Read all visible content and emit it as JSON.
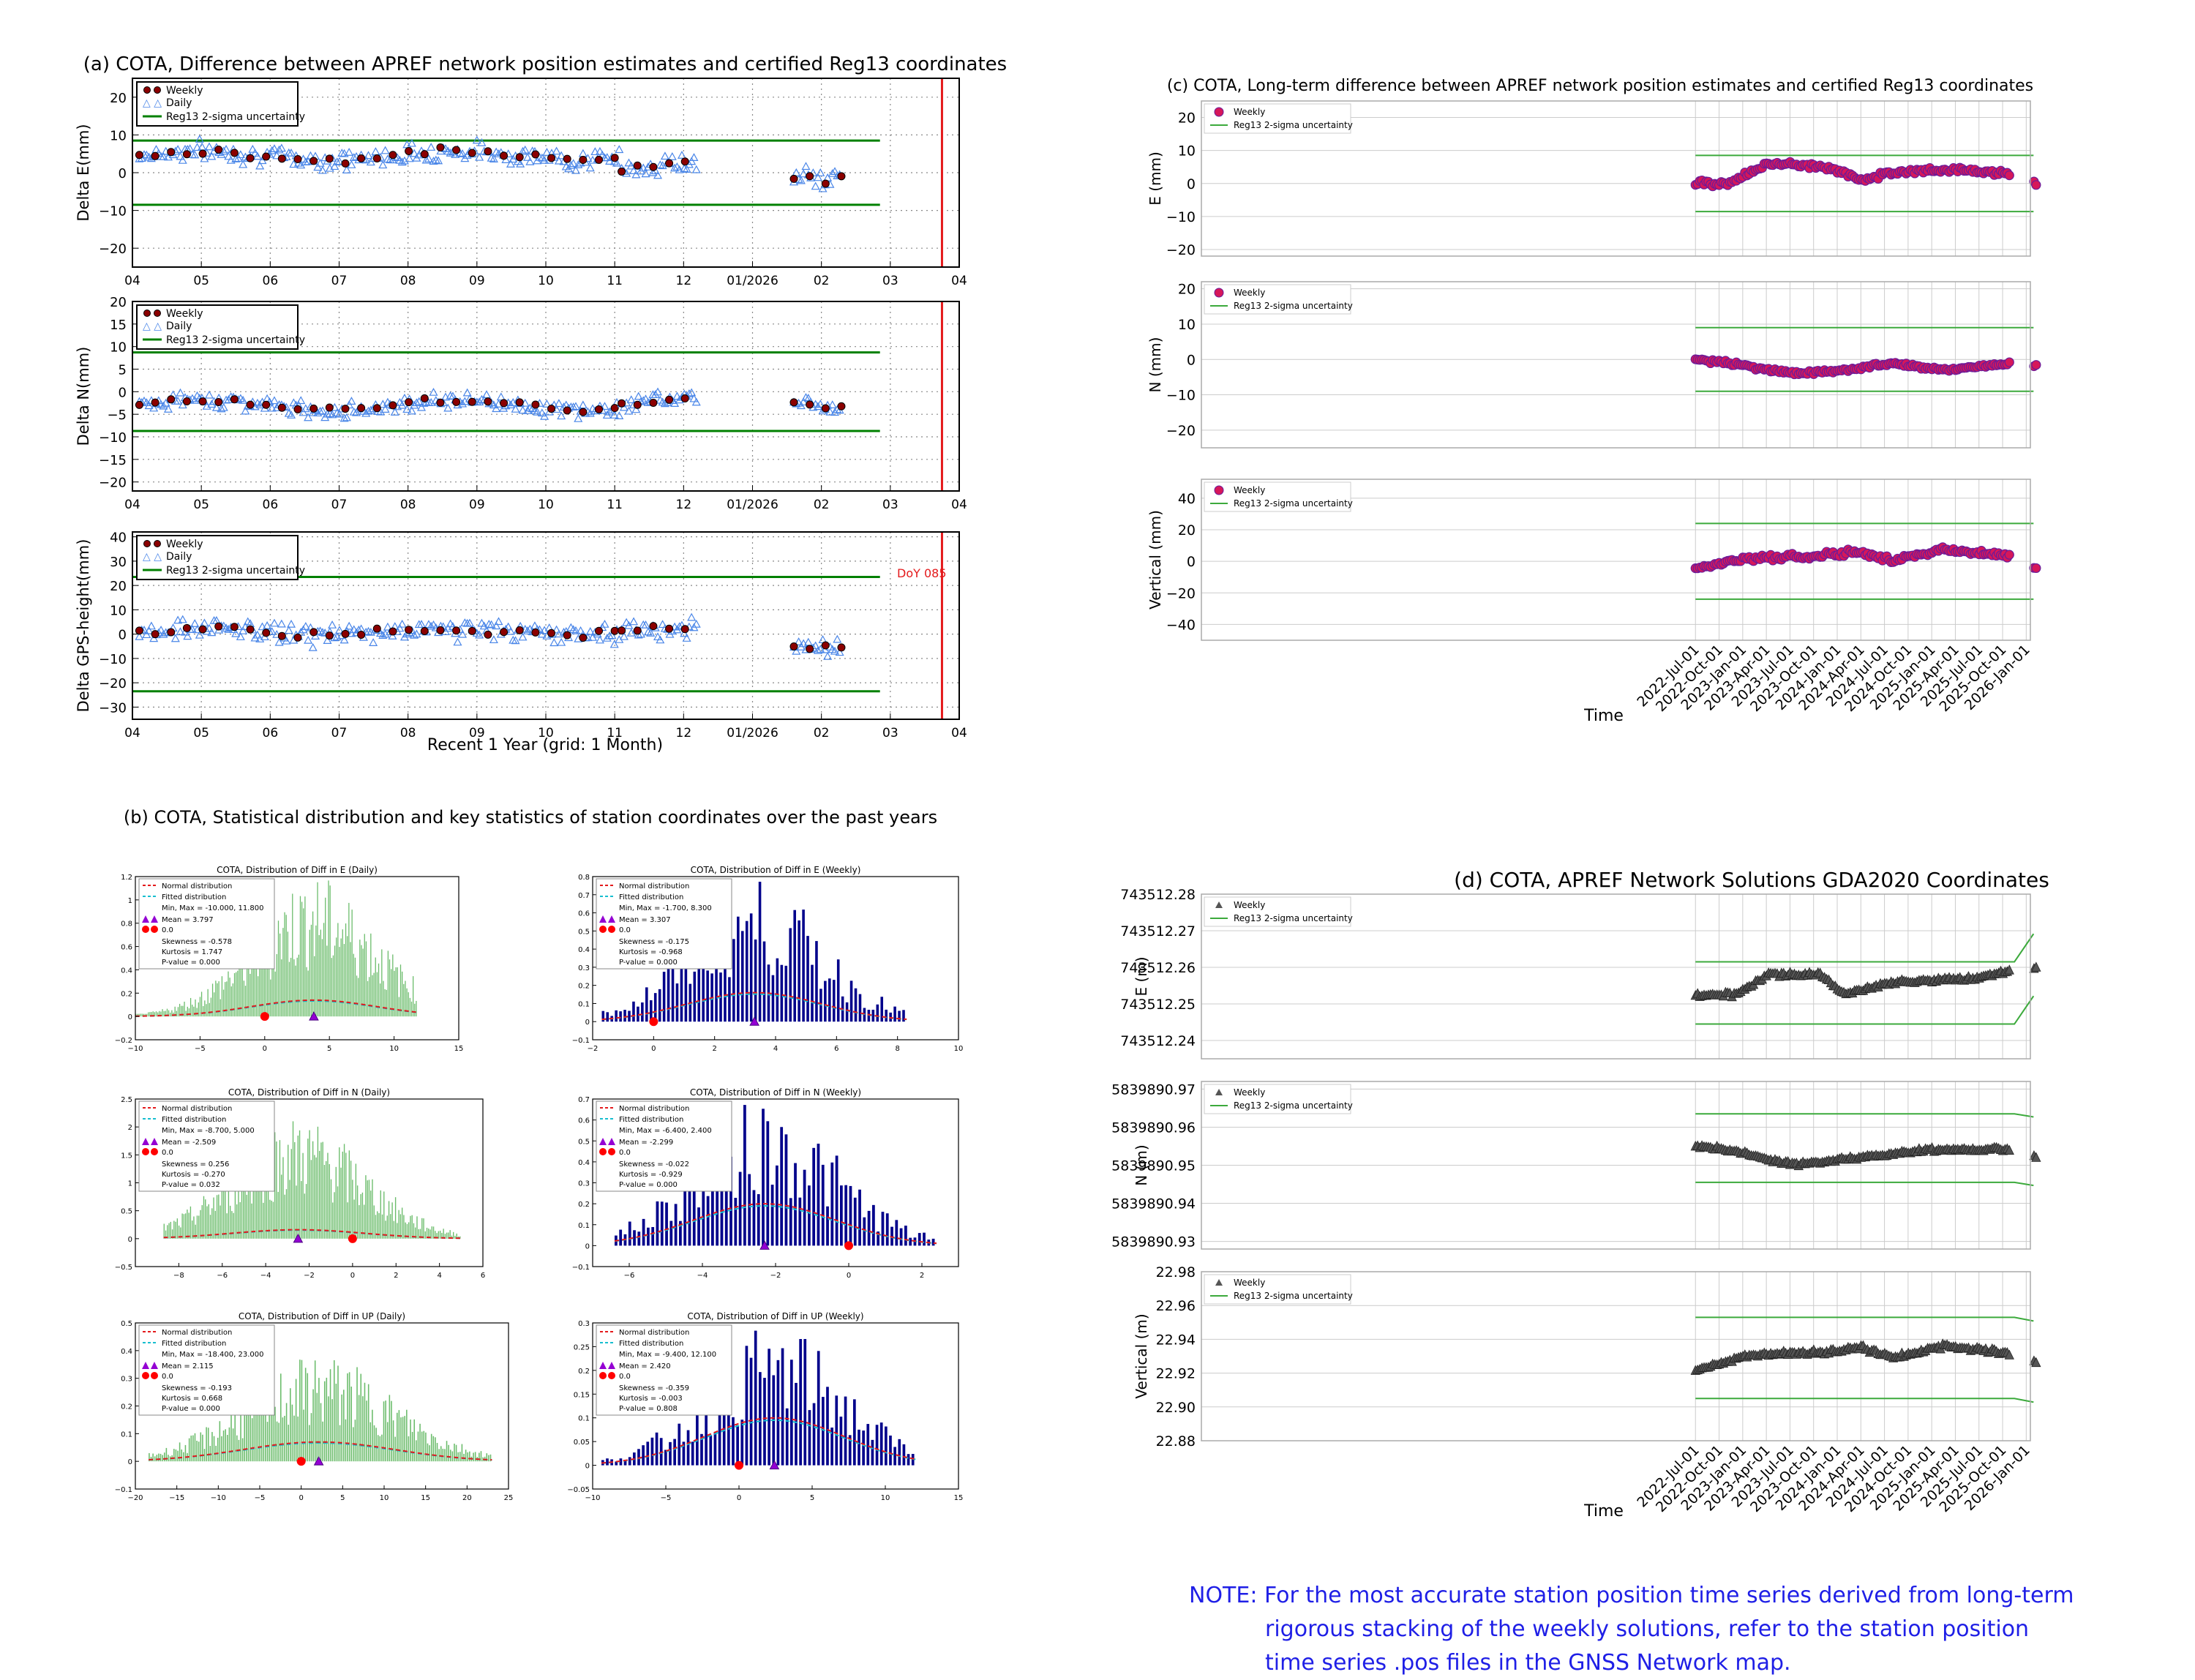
{
  "colors": {
    "weekly_fill": "#8b0000",
    "daily_stroke": "#4a86e8",
    "sigma": "#008000",
    "redline": "#e41a1c",
    "grid": "#888888",
    "lt_fill": "#d6175a",
    "lt_edge": "#6a1b9a",
    "lt_sigma": "#3caa3c",
    "hist_green": "#3aa53a",
    "hist_blue": "#00008b",
    "normal": "#e41a1c",
    "fitted": "#17becf",
    "mean": "#9400d3",
    "zero": "#ff0000",
    "gda_marker": "#555555",
    "note": "#1f1fe6"
  },
  "panel_a": {
    "title": "(a) COTA, Difference between APREF network position estimates and certified Reg13 coordinates",
    "xlabel": "Recent 1 Year (grid: 1 Month)",
    "xticks": [
      "04",
      "05",
      "06",
      "07",
      "08",
      "09",
      "10",
      "11",
      "12",
      "01/2026",
      "02",
      "03",
      "04"
    ],
    "legend": [
      "Weekly",
      "Daily",
      "Reg13 2-sigma uncertainty"
    ],
    "doy_label": "DoY 085",
    "subplots": [
      {
        "ylabel": "Delta E(mm)",
        "ylim": [
          -25,
          25
        ],
        "yticks": [
          -20,
          -10,
          0,
          10,
          20
        ],
        "sigma": 8.5,
        "sigma_low": -8.5,
        "weekly_mean": 5,
        "daily_spread": 3,
        "segments": [
          [
            0,
            7
          ],
          [
            7,
            8.1
          ],
          [
            9.5,
            10.2
          ]
        ],
        "offset": [
          4.5,
          1.5,
          -0.5
        ]
      },
      {
        "ylabel": "Delta N(mm)",
        "ylim": [
          -22,
          20
        ],
        "yticks": [
          -20,
          -15,
          -10,
          -5,
          0,
          5,
          10,
          15,
          20
        ],
        "sigma": 8.7,
        "sigma_low": -8.7,
        "weekly_mean": -2,
        "daily_spread": 2,
        "segments": [
          [
            0,
            7
          ],
          [
            7,
            8.1
          ],
          [
            9.5,
            10.2
          ]
        ],
        "offset": [
          -3,
          -2,
          -2
        ]
      },
      {
        "ylabel": "Delta GPS-height(mm)",
        "ylim": [
          -35,
          42
        ],
        "yticks": [
          -30,
          -20,
          -10,
          0,
          10,
          20,
          30,
          40
        ],
        "sigma": 23.5,
        "sigma_low": -23.5,
        "weekly_mean": 2,
        "daily_spread": 5,
        "segments": [
          [
            0,
            7
          ],
          [
            7,
            8.1
          ],
          [
            9.5,
            10.2
          ]
        ],
        "offset": [
          1,
          2,
          -5
        ]
      }
    ]
  },
  "panel_b": {
    "title": "(b) COTA, Statistical distribution and key statistics of station coordinates over the past years",
    "legend_labels": [
      "Normal distribution",
      "Fitted distribution",
      "Mean",
      "0.0"
    ],
    "hists": [
      {
        "title": "COTA, Distribution of Diff in E (Daily)",
        "color": "green",
        "xlim": [
          -10,
          15
        ],
        "xticks": [
          -10,
          -5,
          0,
          5,
          10,
          15
        ],
        "ylim": [
          -0.2,
          1.2
        ],
        "yticks": [
          -0.2,
          0.0,
          0.2,
          0.4,
          0.6,
          0.8,
          1.0,
          1.2
        ],
        "mean": 3.797,
        "min": -10.0,
        "max": 11.8,
        "peak": 1.1,
        "normal_peak": 0.14,
        "stats": [
          "Min, Max  = -10.000, 11.800",
          "Mean       = 3.797",
          "Skewness = -0.578",
          "Kurtosis    = 1.747",
          "P-value  = 0.000"
        ]
      },
      {
        "title": "COTA, Distribution of Diff in E (Weekly)",
        "color": "blue",
        "xlim": [
          -2,
          10
        ],
        "xticks": [
          -2,
          0,
          2,
          4,
          6,
          8,
          10
        ],
        "ylim": [
          -0.1,
          0.8
        ],
        "yticks": [
          -0.1,
          0.0,
          0.1,
          0.2,
          0.3,
          0.4,
          0.5,
          0.6,
          0.7,
          0.8
        ],
        "mean": 3.307,
        "min": -1.7,
        "max": 8.3,
        "peak": 0.72,
        "normal_peak": 0.16,
        "stats": [
          "Min, Max  = -1.700,  8.300",
          "Mean       = 3.307",
          "Skewness = -0.175",
          "Kurtosis    = -0.968",
          "P-value  = 0.000"
        ]
      },
      {
        "title": "COTA, Distribution of Diff in N (Daily)",
        "color": "green",
        "xlim": [
          -10,
          6
        ],
        "xticks": [
          -8,
          -6,
          -4,
          -2,
          0,
          2,
          4,
          6
        ],
        "ylim": [
          -0.5,
          2.5
        ],
        "yticks": [
          -0.5,
          0.0,
          0.5,
          1.0,
          1.5,
          2.0,
          2.5
        ],
        "mean": -2.509,
        "min": -8.7,
        "max": 5.0,
        "peak": 2.0,
        "normal_peak": 0.16,
        "stats": [
          "Min, Max  = -8.700,  5.000",
          "Mean       = -2.509",
          "Skewness = 0.256",
          "Kurtosis    = -0.270",
          "P-value  = 0.032"
        ]
      },
      {
        "title": "COTA, Distribution of Diff in N (Weekly)",
        "color": "blue",
        "xlim": [
          -7,
          3
        ],
        "xticks": [
          -6,
          -4,
          -2,
          0,
          2
        ],
        "ylim": [
          -0.1,
          0.7
        ],
        "yticks": [
          -0.1,
          0.0,
          0.1,
          0.2,
          0.3,
          0.4,
          0.5,
          0.6,
          0.7
        ],
        "mean": -2.299,
        "min": -6.4,
        "max": 2.4,
        "peak": 0.65,
        "normal_peak": 0.2,
        "stats": [
          "Min, Max  = -6.400,  2.400",
          "Mean       = -2.299",
          "Skewness = -0.022",
          "Kurtosis    = -0.929",
          "P-value  = 0.000"
        ]
      },
      {
        "title": "COTA, Distribution of Diff in UP (Daily)",
        "color": "green",
        "xlim": [
          -20,
          25
        ],
        "xticks": [
          -20,
          -15,
          -10,
          -5,
          0,
          5,
          10,
          15,
          20,
          25
        ],
        "ylim": [
          -0.1,
          0.5
        ],
        "yticks": [
          -0.1,
          0.0,
          0.1,
          0.2,
          0.3,
          0.4,
          0.5
        ],
        "mean": 2.115,
        "min": -18.4,
        "max": 23.0,
        "peak": 0.35,
        "normal_peak": 0.07,
        "stats": [
          "Min, Max  = -18.400, 23.000",
          "Mean       = 2.115",
          "Skewness = -0.193",
          "Kurtosis    = 0.668",
          "P-value  = 0.000"
        ]
      },
      {
        "title": "COTA, Distribution of Diff in UP (Weekly)",
        "color": "blue",
        "xlim": [
          -10,
          15
        ],
        "xticks": [
          -10,
          -5,
          0,
          5,
          10,
          15
        ],
        "ylim": [
          -0.05,
          0.3
        ],
        "yticks": [
          -0.05,
          0.0,
          0.05,
          0.1,
          0.15,
          0.2,
          0.25,
          0.3
        ],
        "mean": 2.42,
        "min": -9.4,
        "max": 12.1,
        "peak": 0.27,
        "normal_peak": 0.1,
        "stats": [
          "Min, Max  = -9.400, 12.100",
          "Mean       = 2.420",
          "Skewness = -0.359",
          "Kurtosis    = -0.003",
          "P-value  = 0.808"
        ]
      }
    ]
  },
  "panel_c": {
    "title": "(c) COTA, Long-term difference between APREF network position estimates and certified Reg13 coordinates",
    "xlabel": "Time",
    "xticks": [
      "2022-Jul-01",
      "2022-Oct-01",
      "2023-Jan-01",
      "2023-Apr-01",
      "2023-Jul-01",
      "2023-Oct-01",
      "2024-Jan-01",
      "2024-Apr-01",
      "2024-Jul-01",
      "2024-Oct-01",
      "2025-Jan-01",
      "2025-Apr-01",
      "2025-Jul-01",
      "2025-Oct-01",
      "2026-Jan-01"
    ],
    "legend": [
      "Weekly",
      "Reg13 2-sigma uncertainty"
    ],
    "subplots": [
      {
        "ylabel": "E (mm)",
        "ylim": [
          -22,
          25
        ],
        "yticks": [
          -20,
          -10,
          0,
          10,
          20
        ],
        "sigma": 8.5,
        "sigma_low": -8.5,
        "trend": [
          [
            0,
            0
          ],
          [
            0.1,
            0
          ],
          [
            0.22,
            6
          ],
          [
            0.4,
            5
          ],
          [
            0.5,
            1
          ],
          [
            0.62,
            4
          ],
          [
            0.8,
            4
          ],
          [
            0.96,
            3
          ],
          [
            1.0,
            -1
          ]
        ],
        "spread": 1.2
      },
      {
        "ylabel": "N (mm)",
        "ylim": [
          -25,
          22
        ],
        "yticks": [
          -20,
          -10,
          0,
          10,
          20
        ],
        "sigma": 9,
        "sigma_low": -9,
        "trend": [
          [
            0,
            0
          ],
          [
            0.1,
            -1
          ],
          [
            0.3,
            -4
          ],
          [
            0.45,
            -3
          ],
          [
            0.6,
            -1
          ],
          [
            0.75,
            -3
          ],
          [
            0.95,
            -1
          ],
          [
            1.0,
            -2
          ]
        ],
        "spread": 0.8
      },
      {
        "ylabel": "Vertical (mm)",
        "ylim": [
          -50,
          52
        ],
        "yticks": [
          -40,
          -20,
          0,
          20,
          40
        ],
        "sigma": 24,
        "sigma_low": -24,
        "trend": [
          [
            0,
            -5
          ],
          [
            0.15,
            2
          ],
          [
            0.35,
            3
          ],
          [
            0.5,
            6
          ],
          [
            0.6,
            0
          ],
          [
            0.75,
            8
          ],
          [
            0.95,
            3
          ],
          [
            1.0,
            -5
          ]
        ],
        "spread": 2.5
      }
    ]
  },
  "panel_d": {
    "title": "(d) COTA, APREF Network Solutions GDA2020 Coordinates",
    "xlabel": "Time",
    "xticks": [
      "2022-Jul-01",
      "2022-Oct-01",
      "2023-Jan-01",
      "2023-Apr-01",
      "2023-Jul-01",
      "2023-Oct-01",
      "2024-Jan-01",
      "2024-Apr-01",
      "2024-Jul-01",
      "2024-Oct-01",
      "2025-Jan-01",
      "2025-Apr-01",
      "2025-Jul-01",
      "2025-Oct-01",
      "2026-Jan-01"
    ],
    "legend": [
      "Weekly",
      "Reg13 2-sigma uncertainty"
    ],
    "subplots": [
      {
        "ylabel": "E (m)",
        "ylim": [
          743512.235,
          743512.28
        ],
        "yticks": [
          "743512.24",
          "743512.25",
          "743512.26",
          "743512.27",
          "743512.28"
        ],
        "tickvals": [
          743512.24,
          743512.25,
          743512.26,
          743512.27,
          743512.28
        ],
        "sigma_hi": 743512.2615,
        "sigma_lo": 743512.2445,
        "trend": [
          [
            0,
            743512.2525
          ],
          [
            0.12,
            743512.2525
          ],
          [
            0.22,
            743512.258
          ],
          [
            0.38,
            743512.258
          ],
          [
            0.45,
            743512.2525
          ],
          [
            0.6,
            743512.256
          ],
          [
            0.85,
            743512.257
          ],
          [
            1.0,
            743512.26
          ]
        ],
        "spread": 0.0008
      },
      {
        "ylabel": "N (m)",
        "ylim": [
          5839890.928,
          5839890.972
        ],
        "yticks": [
          "5839890.93",
          "5839890.94",
          "5839890.95",
          "5839890.96",
          "5839890.97"
        ],
        "tickvals": [
          5839890.93,
          5839890.94,
          5839890.95,
          5839890.96,
          5839890.97
        ],
        "sigma_hi": 5839890.9635,
        "sigma_lo": 5839890.9455,
        "trend": [
          [
            0,
            5839890.955
          ],
          [
            0.1,
            5839890.954
          ],
          [
            0.3,
            5839890.95
          ],
          [
            0.5,
            5839890.952
          ],
          [
            0.7,
            5839890.954
          ],
          [
            0.95,
            5839890.954
          ],
          [
            1.0,
            5839890.952
          ]
        ],
        "spread": 0.0007
      },
      {
        "ylabel": "Vertical (m)",
        "ylim": [
          22.88,
          22.98
        ],
        "yticks": [
          "22.88",
          "22.90",
          "22.92",
          "22.94",
          "22.96",
          "22.98"
        ],
        "tickvals": [
          22.88,
          22.9,
          22.92,
          22.94,
          22.96,
          22.98
        ],
        "sigma_hi": 22.953,
        "sigma_lo": 22.905,
        "trend": [
          [
            0,
            22.922
          ],
          [
            0.15,
            22.93
          ],
          [
            0.35,
            22.932
          ],
          [
            0.5,
            22.935
          ],
          [
            0.6,
            22.929
          ],
          [
            0.75,
            22.936
          ],
          [
            0.95,
            22.932
          ],
          [
            1.0,
            22.925
          ]
        ],
        "spread": 0.002
      }
    ]
  },
  "note": {
    "line1": "NOTE: For the most accurate station position time series derived from long-term",
    "line2": "rigorous stacking of the weekly solutions, refer to the station position",
    "line3": "time series .pos files in the GNSS Network map."
  },
  "chart_data": [
    {
      "type": "scatter",
      "title": "(a) COTA, Difference between APREF network position estimates and certified Reg13 coordinates",
      "xlabel": "Recent 1 Year (grid: 1 Month)",
      "x": [
        "04",
        "05",
        "06",
        "07",
        "08",
        "09",
        "10",
        "11",
        "12",
        "01/2026",
        "02",
        "03",
        "04"
      ],
      "series": [
        {
          "name": "Weekly Delta E(mm)",
          "approx_level": 5
        },
        {
          "name": "Weekly Delta N(mm)",
          "approx_level": -2
        },
        {
          "name": "Weekly Delta GPS-height(mm)",
          "approx_level": 2
        },
        {
          "name": "Reg13 2-sigma uncertainty E",
          "values": [
            8.5,
            -8.5
          ]
        },
        {
          "name": "Reg13 2-sigma uncertainty N",
          "values": [
            8.7,
            -8.7
          ]
        },
        {
          "name": "Reg13 2-sigma uncertainty U",
          "values": [
            23.5,
            -23.5
          ]
        }
      ]
    },
    {
      "type": "bar",
      "title": "(b) COTA, Statistical distribution and key statistics of station coordinates over the past years",
      "categories": [
        "E Daily",
        "E Weekly",
        "N Daily",
        "N Weekly",
        "UP Daily",
        "UP Weekly"
      ],
      "series": [
        {
          "name": "Mean",
          "values": [
            3.797,
            3.307,
            -2.509,
            -2.299,
            2.115,
            2.42
          ]
        },
        {
          "name": "Skewness",
          "values": [
            -0.578,
            -0.175,
            0.256,
            -0.022,
            -0.193,
            -0.359
          ]
        },
        {
          "name": "Kurtosis",
          "values": [
            1.747,
            -0.968,
            -0.27,
            -0.929,
            0.668,
            -0.003
          ]
        },
        {
          "name": "P-value",
          "values": [
            0.0,
            0.0,
            0.032,
            0.0,
            0.0,
            0.808
          ]
        }
      ]
    },
    {
      "type": "scatter",
      "title": "(c) COTA, Long-term difference between APREF network position estimates and certified Reg13 coordinates",
      "xlabel": "Time",
      "series": [
        {
          "name": "Weekly E (mm)"
        },
        {
          "name": "Weekly N (mm)"
        },
        {
          "name": "Weekly Vertical (mm)"
        }
      ]
    },
    {
      "type": "scatter",
      "title": "(d) COTA, APREF Network Solutions GDA2020 Coordinates",
      "xlabel": "Time",
      "series": [
        {
          "name": "Weekly E (m)"
        },
        {
          "name": "Weekly N (m)"
        },
        {
          "name": "Weekly Vertical (m)"
        }
      ]
    }
  ]
}
